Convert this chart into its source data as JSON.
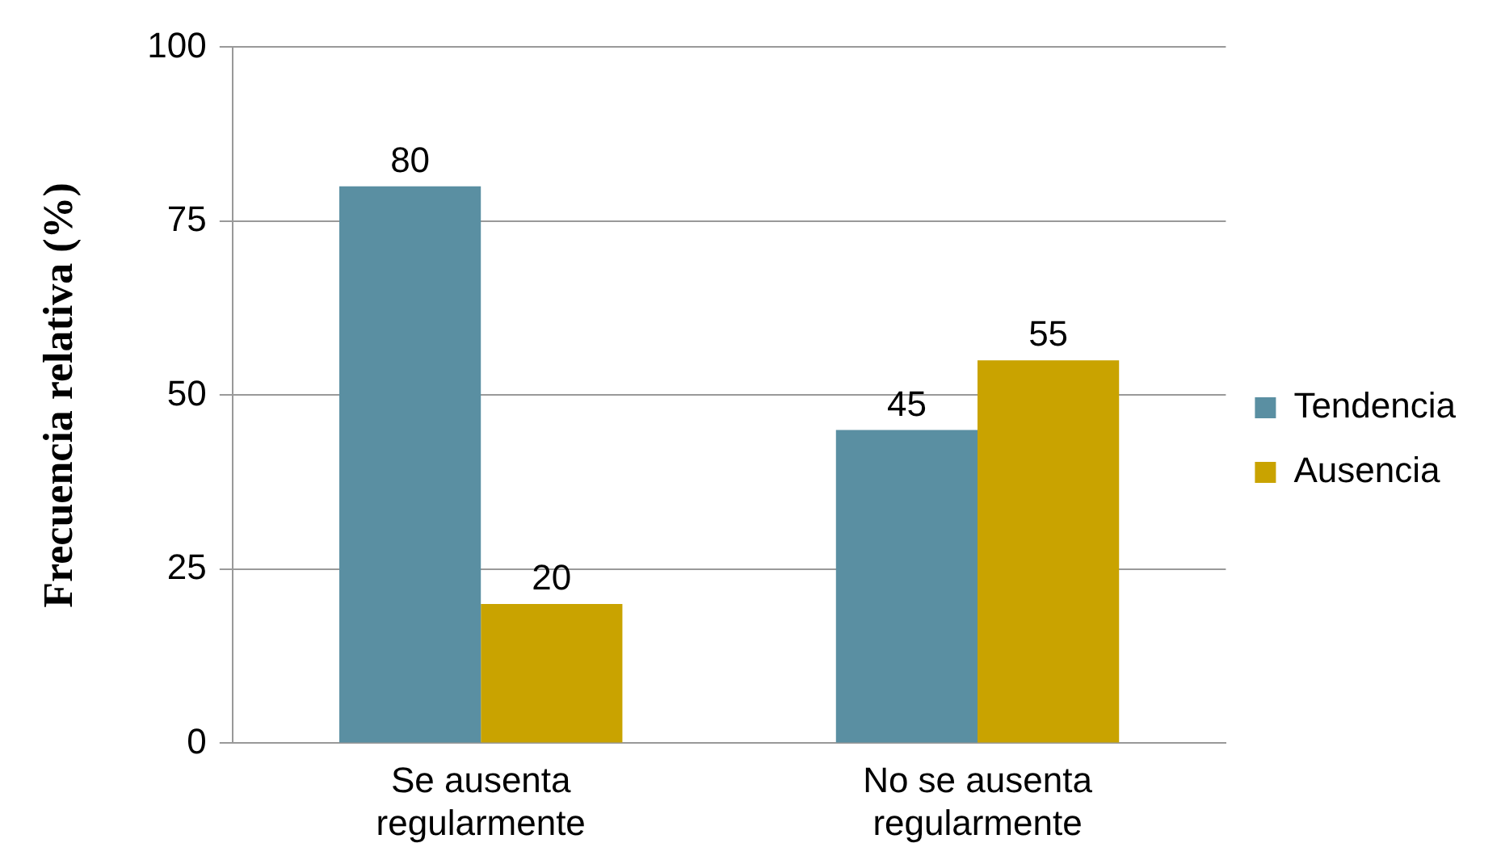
{
  "chart_data": {
    "type": "bar",
    "ylabel": "Frecuencia relativa (%)",
    "categories": [
      "Se ausenta regularmente",
      "No se ausenta regularmente"
    ],
    "series": [
      {
        "name": "Tendencia",
        "color": "#5a8fa2",
        "values": [
          80,
          45
        ]
      },
      {
        "name": "Ausencia",
        "color": "#c9a300",
        "values": [
          20,
          55
        ]
      }
    ],
    "ylim": [
      0,
      100
    ],
    "yticks": [
      0,
      25,
      50,
      75,
      100
    ],
    "grid": "y",
    "legend": "right",
    "data_labels": true
  }
}
